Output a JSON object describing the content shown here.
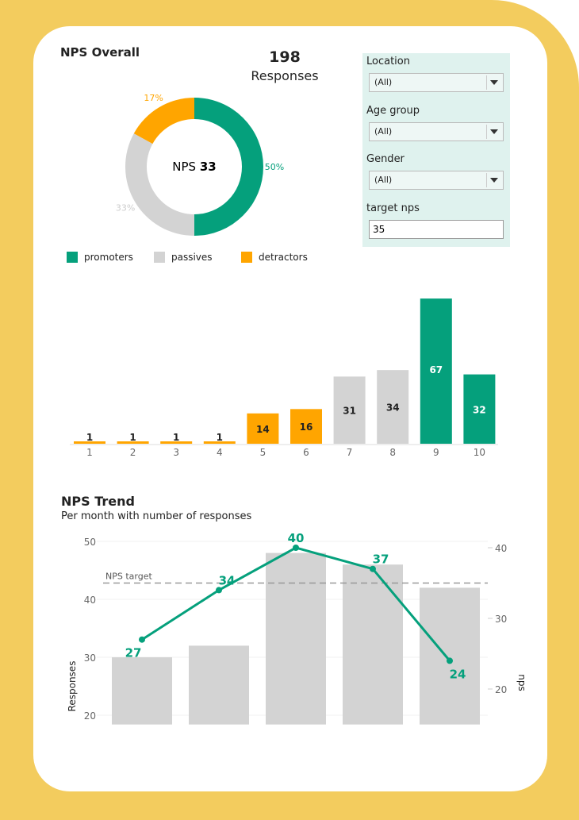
{
  "colors": {
    "promoters": "#05A07C",
    "passives": "#D3D3D3",
    "detractors": "#FFA500",
    "background": "#F3CC5E",
    "panel": "#DFF2EE"
  },
  "overall": {
    "title": "NPS Overall",
    "responses_count": "198",
    "responses_label": "Responses",
    "nps_prefix": "NPS",
    "nps_value": "33"
  },
  "filters": {
    "location": {
      "label": "Location",
      "value": "(All)"
    },
    "age_group": {
      "label": "Age group",
      "value": "(All)"
    },
    "gender": {
      "label": "Gender",
      "value": "(All)"
    },
    "target": {
      "label": "target nps",
      "value": "35"
    }
  },
  "chart_data": [
    {
      "type": "pie",
      "name": "nps-donut",
      "slices": [
        {
          "label": "promoters",
          "value": 50,
          "text": "50%"
        },
        {
          "label": "passives",
          "value": 33,
          "text": "33%"
        },
        {
          "label": "detractors",
          "value": 17,
          "text": "17%"
        }
      ],
      "legend": [
        "promoters",
        "passives",
        "detractors"
      ],
      "legend_position": "bottom"
    },
    {
      "type": "bar",
      "name": "score-distribution",
      "categories": [
        "1",
        "2",
        "3",
        "4",
        "5",
        "6",
        "7",
        "8",
        "9",
        "10"
      ],
      "values": [
        1,
        1,
        1,
        1,
        14,
        16,
        31,
        34,
        67,
        32
      ],
      "groups": [
        "detractors",
        "detractors",
        "detractors",
        "detractors",
        "detractors",
        "detractors",
        "passives",
        "passives",
        "promoters",
        "promoters"
      ]
    },
    {
      "type": "bar+line",
      "name": "nps-trend",
      "title": "NPS Trend",
      "subtitle": "Per month with number of responses",
      "bars": {
        "values": [
          30,
          32,
          48,
          46,
          42
        ],
        "ylabel": "Responses",
        "ylim": [
          18,
          50
        ],
        "ticks": [
          "20",
          "30",
          "40",
          "50"
        ]
      },
      "line": {
        "values": [
          27,
          34,
          40,
          37,
          24
        ],
        "ylabel": "nps",
        "ylim": [
          16,
          40.5
        ],
        "ticks": [
          "20",
          "30",
          "40"
        ]
      },
      "target": {
        "label": "NPS target",
        "value": 35
      },
      "grid": true
    }
  ]
}
